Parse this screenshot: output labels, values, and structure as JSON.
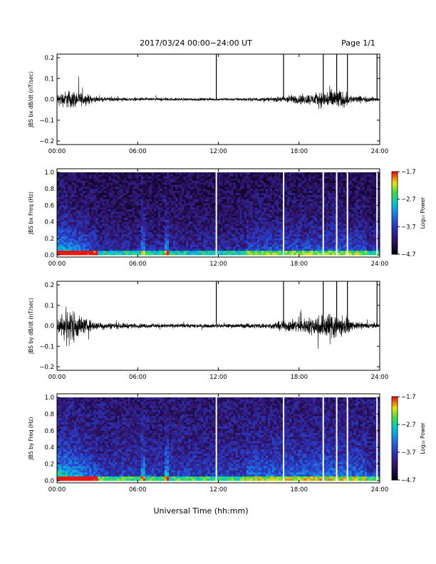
{
  "header": {
    "title": "2017/03/24  00:00−24:00 UT",
    "page": "Page 1/1"
  },
  "footer": {
    "xlabel": "Universal Time (hh:mm)"
  },
  "chart_data": [
    {
      "type": "line",
      "ylabel": "JBS bx dB/dt (nT/sec)",
      "xlim": [
        0,
        24
      ],
      "xticks": [
        "00:00",
        "06:00",
        "12:00",
        "18:00",
        "24:00"
      ],
      "ylim": [
        -0.2,
        0.2
      ],
      "yticks": [
        "0.2",
        "0.1",
        "0.0",
        "−0.1",
        "−0.2"
      ],
      "spikes_hours": [
        11.85,
        16.85,
        19.8,
        20.8,
        21.6,
        23.8
      ],
      "activity": [
        [
          0,
          0.03
        ],
        [
          1,
          0.05
        ],
        [
          3,
          0.012
        ],
        [
          6,
          0.008
        ],
        [
          12,
          0.007
        ],
        [
          16,
          0.01
        ],
        [
          17,
          0.02
        ],
        [
          19,
          0.03
        ],
        [
          20.6,
          0.06
        ],
        [
          22,
          0.02
        ],
        [
          24,
          0.01
        ]
      ]
    },
    {
      "type": "heatmap",
      "ylabel": "JBS bx Freq (Hz)",
      "xlim": [
        0,
        24
      ],
      "xticks": [
        "00:00",
        "06:00",
        "12:00",
        "18:00",
        "24:00"
      ],
      "ylim": [
        0,
        1
      ],
      "yticks": [
        "1.0",
        "0.8",
        "0.6",
        "0.4",
        "0.2",
        "0.0"
      ],
      "colorbar": {
        "label": "Log₁₀ Power",
        "ticks": [
          "−1.7",
          "−2.7",
          "−3.7",
          "−4.7"
        ]
      },
      "gap_hours": [
        11.85,
        16.85,
        19.8,
        20.8,
        21.6,
        23.8
      ]
    },
    {
      "type": "line",
      "ylabel": "JBS by dB/dt (nT/sec)",
      "xlim": [
        0,
        24
      ],
      "xticks": [
        "00:00",
        "06:00",
        "12:00",
        "18:00",
        "24:00"
      ],
      "ylim": [
        -0.2,
        0.2
      ],
      "yticks": [
        "0.2",
        "0.1",
        "0.0",
        "−0.1",
        "−0.2"
      ],
      "spikes_hours": [
        11.85,
        16.85,
        19.8,
        20.8,
        21.6,
        23.8
      ],
      "activity": [
        [
          0,
          0.05
        ],
        [
          1,
          0.1
        ],
        [
          2,
          0.04
        ],
        [
          3,
          0.02
        ],
        [
          6,
          0.012
        ],
        [
          12,
          0.01
        ],
        [
          16,
          0.015
        ],
        [
          17,
          0.03
        ],
        [
          18.5,
          0.04
        ],
        [
          20.6,
          0.08
        ],
        [
          22,
          0.02
        ],
        [
          24,
          0.012
        ]
      ]
    },
    {
      "type": "heatmap",
      "ylabel": "JBS by Freq (Hz)",
      "xlim": [
        0,
        24
      ],
      "xticks": [
        "00:00",
        "06:00",
        "12:00",
        "18:00",
        "24:00"
      ],
      "ylim": [
        0,
        1
      ],
      "yticks": [
        "1.0",
        "0.8",
        "0.6",
        "0.4",
        "0.2",
        "0.0"
      ],
      "colorbar": {
        "label": "Log₁₀ Power",
        "ticks": [
          "−1.7",
          "−2.7",
          "−3.7",
          "−4.7"
        ]
      },
      "gap_hours": [
        11.85,
        16.85,
        19.8,
        20.8,
        21.6,
        23.8
      ]
    }
  ]
}
